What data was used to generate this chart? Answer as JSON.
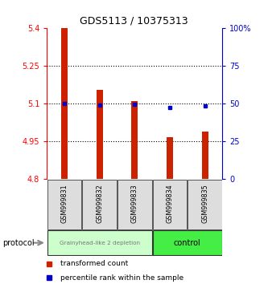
{
  "title": "GDS5113 / 10375313",
  "samples": [
    "GSM999831",
    "GSM999832",
    "GSM999833",
    "GSM999834",
    "GSM999835"
  ],
  "bar_bottom": 4.8,
  "bar_tops": [
    5.4,
    5.155,
    5.11,
    4.965,
    4.99
  ],
  "percentile_values": [
    5.1,
    5.095,
    5.097,
    5.085,
    5.09
  ],
  "ylim_left": [
    4.8,
    5.4
  ],
  "ylim_right": [
    0,
    100
  ],
  "yticks_left": [
    4.8,
    4.95,
    5.1,
    5.25,
    5.4
  ],
  "ytick_labels_left": [
    "4.8",
    "4.95",
    "5.1",
    "5.25",
    "5.4"
  ],
  "yticks_right": [
    0,
    25,
    50,
    75,
    100
  ],
  "ytick_labels_right": [
    "0",
    "25",
    "50",
    "75",
    "100%"
  ],
  "dotted_lines": [
    4.95,
    5.1,
    5.25
  ],
  "bar_color": "#CC2200",
  "blue_color": "#0000CC",
  "group1_label": "Grainyhead-like 2 depletion",
  "group2_label": "control",
  "group1_color": "#CCFFCC",
  "group2_color": "#44EE44",
  "protocol_label": "protocol",
  "legend_red_label": "transformed count",
  "legend_blue_label": "percentile rank within the sample",
  "bar_width": 0.18
}
